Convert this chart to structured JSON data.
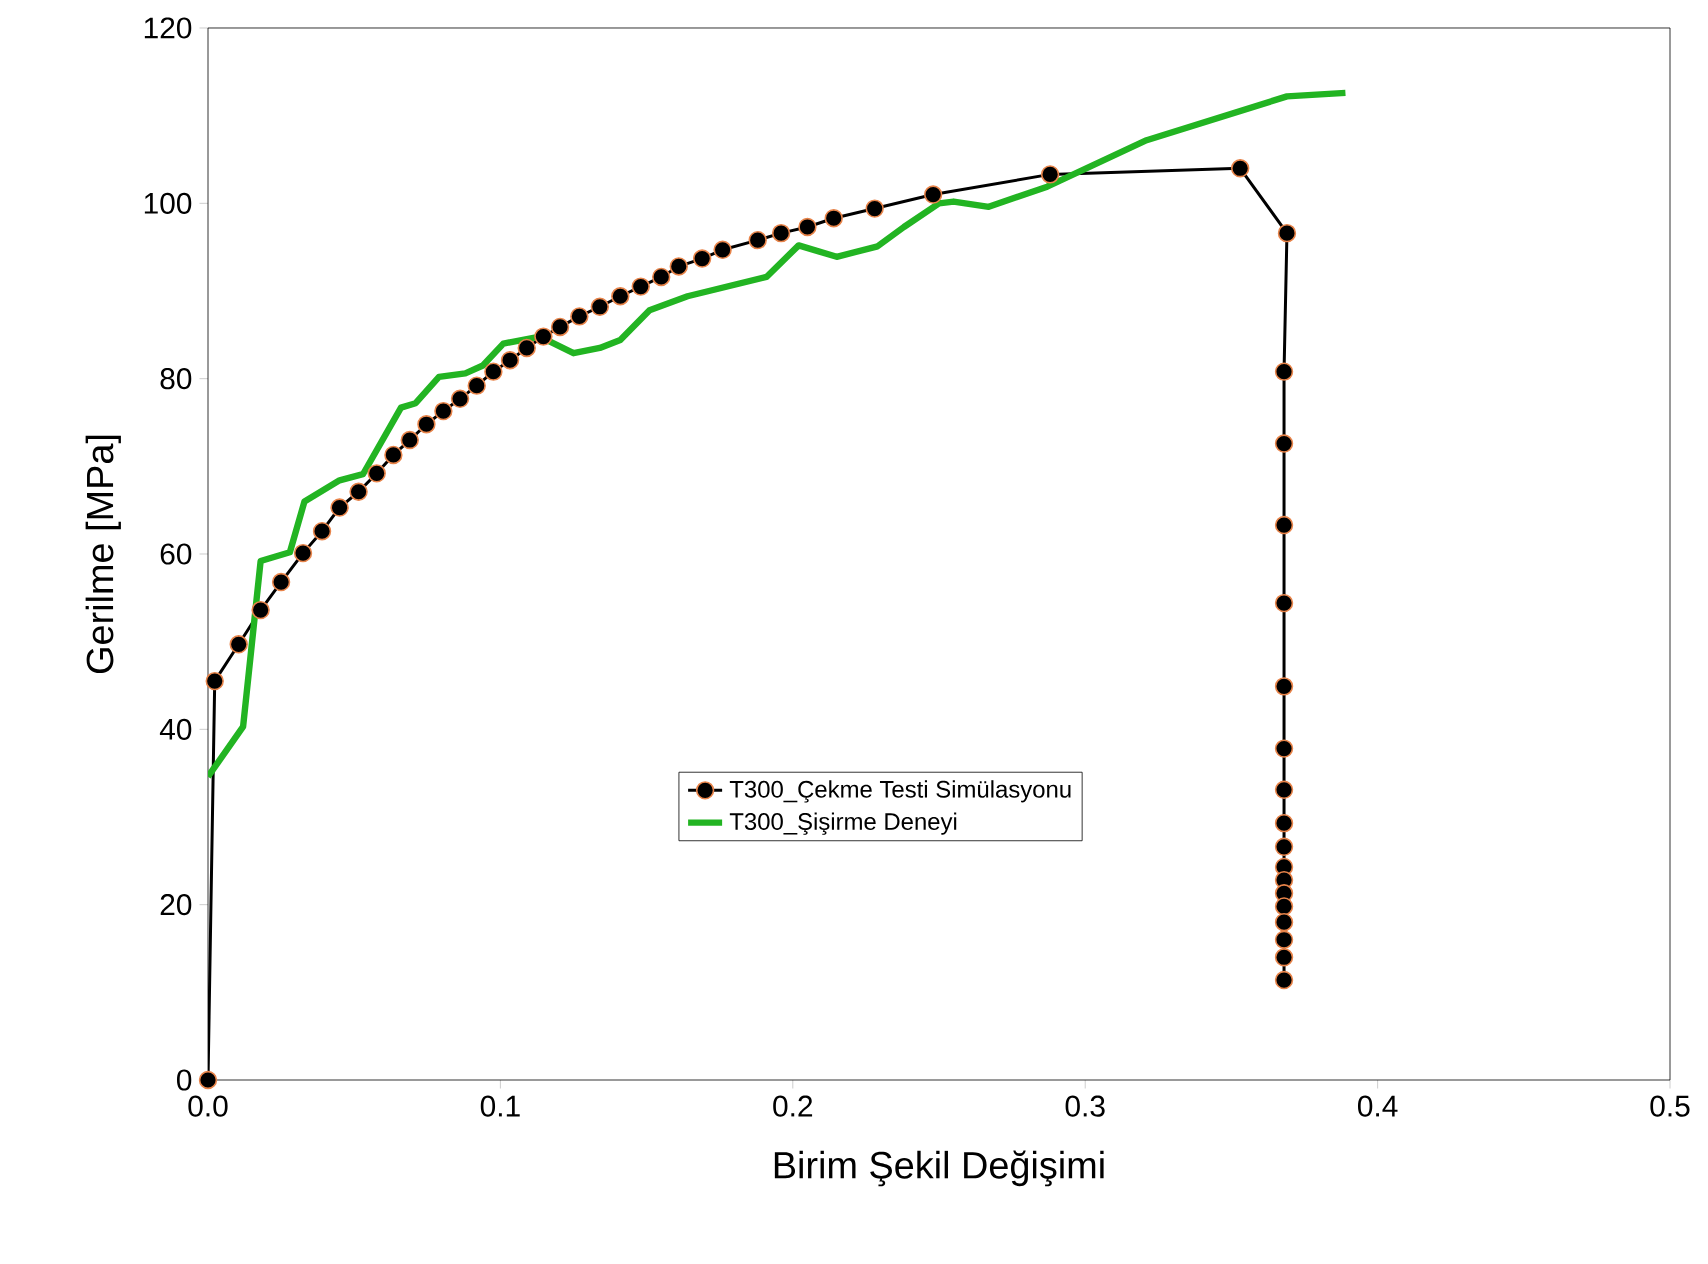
{
  "chart_data": {
    "type": "line",
    "xlabel": "Birim Şekil Değişimi",
    "ylabel": "Gerilme [MPa]",
    "xlim": [
      0,
      0.5
    ],
    "ylim": [
      0,
      120
    ],
    "xticks": [
      {
        "value": 0,
        "label": "0.0"
      },
      0.1,
      0.2,
      0.3,
      0.4,
      0.5
    ],
    "yticks": [
      0,
      20,
      40,
      60,
      80,
      100,
      120
    ],
    "grid": false,
    "legend": "bottom",
    "series": [
      {
        "name": "T300_Çekme Testi Simülasyonu",
        "color": "#000000",
        "marker": "circle",
        "x": [
          0,
          0.0023,
          0.0105,
          0.018,
          0.025,
          0.0325,
          0.039,
          0.045,
          0.0515,
          0.0577,
          0.0634,
          0.069,
          0.0747,
          0.0805,
          0.0862,
          0.0919,
          0.0976,
          0.1033,
          0.109,
          0.1147,
          0.1204,
          0.127,
          0.134,
          0.141,
          0.148,
          0.155,
          0.161,
          0.169,
          0.176,
          0.188,
          0.196,
          0.205,
          0.214,
          0.228,
          0.248,
          0.288,
          0.353,
          0.369,
          0.368,
          0.368,
          0.368,
          0.368,
          0.368,
          0.368,
          0.368,
          0.368,
          0.368,
          0.368,
          0.368,
          0.368,
          0.368,
          0.368,
          0.368,
          0.368,
          0.368
        ],
        "values": [
          0,
          45.5,
          49.7,
          53.6,
          56.8,
          60.1,
          62.6,
          65.3,
          67.1,
          69.2,
          71.3,
          73,
          74.8,
          76.3,
          77.7,
          79.2,
          80.8,
          82.1,
          83.5,
          84.8,
          85.9,
          87.1,
          88.2,
          89.4,
          90.5,
          91.6,
          92.8,
          93.7,
          94.7,
          95.8,
          96.6,
          97.3,
          98.3,
          99.4,
          101,
          103.3,
          104,
          96.6,
          80.8,
          72.6,
          63.3,
          54.4,
          44.9,
          37.8,
          33.1,
          29.3,
          26.6,
          24.3,
          22.8,
          21.3,
          19.8,
          18,
          16,
          14,
          11.4
        ]
      },
      {
        "name": "T300_Şişirme Deneyi",
        "color": "#22b422",
        "marker": "none",
        "x": [
          0,
          0.012,
          0.018,
          0.028,
          0.033,
          0.045,
          0.053,
          0.066,
          0.071,
          0.079,
          0.088,
          0.094,
          0.101,
          0.1135,
          0.125,
          0.134,
          0.141,
          0.151,
          0.164,
          0.191,
          0.202,
          0.215,
          0.229,
          0.238,
          0.25,
          0.255,
          0.267,
          0.287,
          0.321,
          0.369,
          0.389
        ],
        "values": [
          34.6,
          40.3,
          59.2,
          60.2,
          66,
          68.4,
          69.1,
          76.7,
          77.2,
          80.2,
          80.6,
          81.5,
          84,
          84.8,
          82.9,
          83.5,
          84.4,
          87.8,
          89.4,
          91.6,
          95.2,
          93.9,
          95.1,
          97.3,
          100,
          100.2,
          99.6,
          101.9,
          107.2,
          112.2,
          112.6
        ]
      }
    ]
  }
}
